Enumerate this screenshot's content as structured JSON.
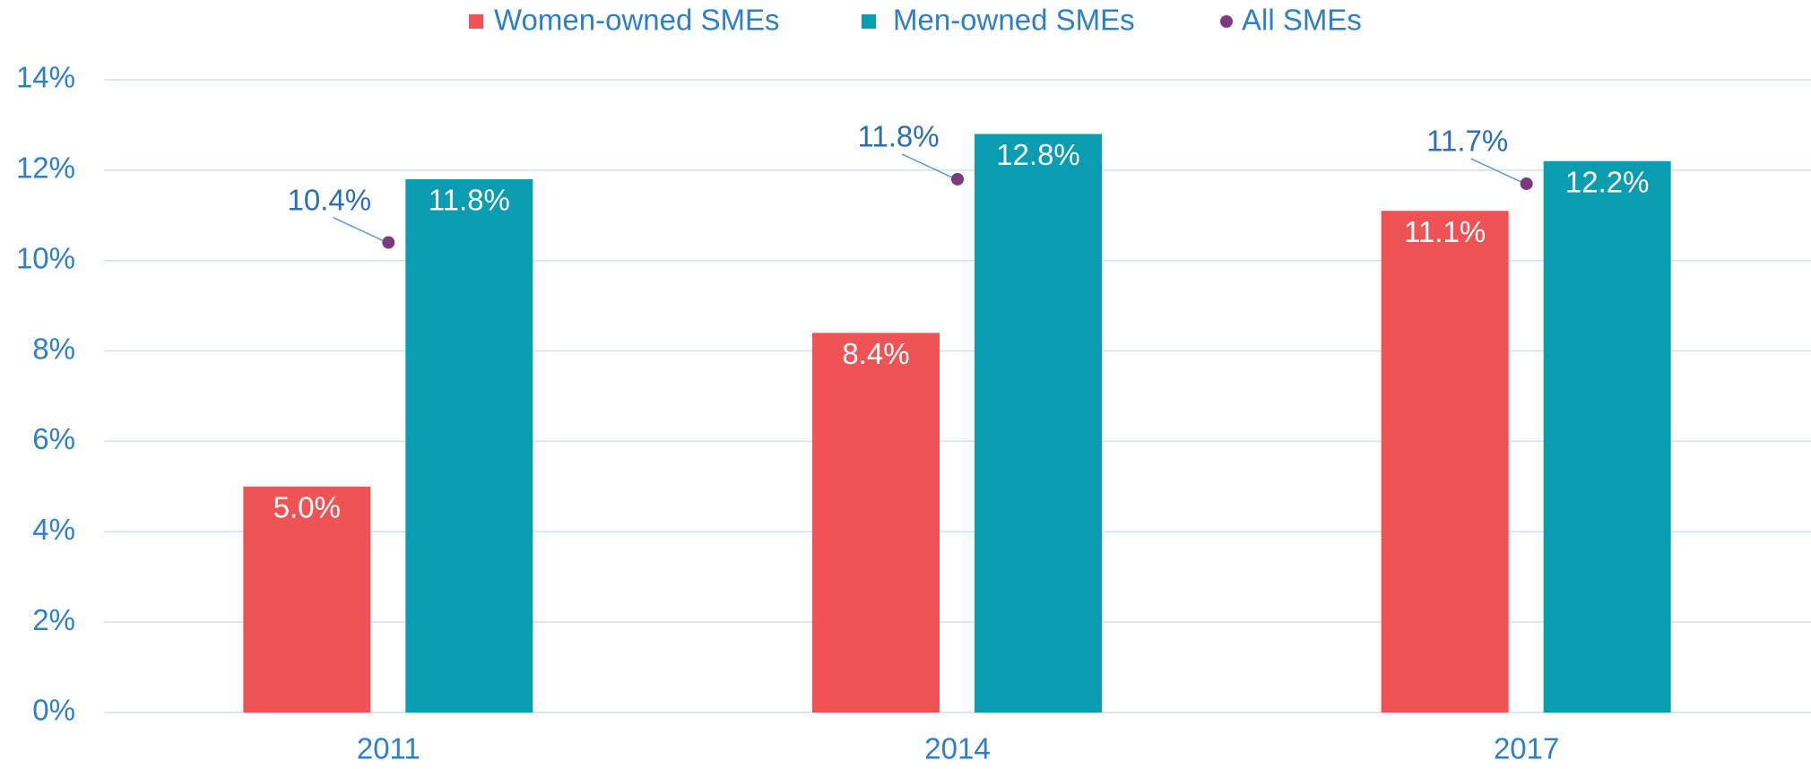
{
  "chart_data": {
    "type": "bar",
    "categories": [
      "2011",
      "2014",
      "2017"
    ],
    "series": [
      {
        "name": "Women-owned SMEs",
        "color": "#f05356",
        "values": [
          5.0,
          8.4,
          11.1
        ],
        "value_labels": [
          "5.0%",
          "8.4%",
          "11.1%"
        ]
      },
      {
        "name": "Men-owned SMEs",
        "color": "#0a9cb0",
        "values": [
          11.8,
          12.8,
          12.2
        ],
        "value_labels": [
          "11.8%",
          "12.8%",
          "12.2%"
        ]
      },
      {
        "name": "All SMEs",
        "color": "#7b3a7f",
        "marker": "dot",
        "values": [
          10.4,
          11.8,
          11.7
        ],
        "value_labels": [
          "10.4%",
          "11.8%",
          "11.7%"
        ]
      }
    ],
    "ylim": [
      0,
      14
    ],
    "yticks": [
      {
        "value": 0,
        "label": "0%"
      },
      {
        "value": 2,
        "label": "2%"
      },
      {
        "value": 4,
        "label": "4%"
      },
      {
        "value": 6,
        "label": "6%"
      },
      {
        "value": 8,
        "label": "8%"
      },
      {
        "value": 10,
        "label": "10%"
      },
      {
        "value": 12,
        "label": "12%"
      },
      {
        "value": 14,
        "label": "14%"
      }
    ],
    "grid": true,
    "legend": "top"
  }
}
